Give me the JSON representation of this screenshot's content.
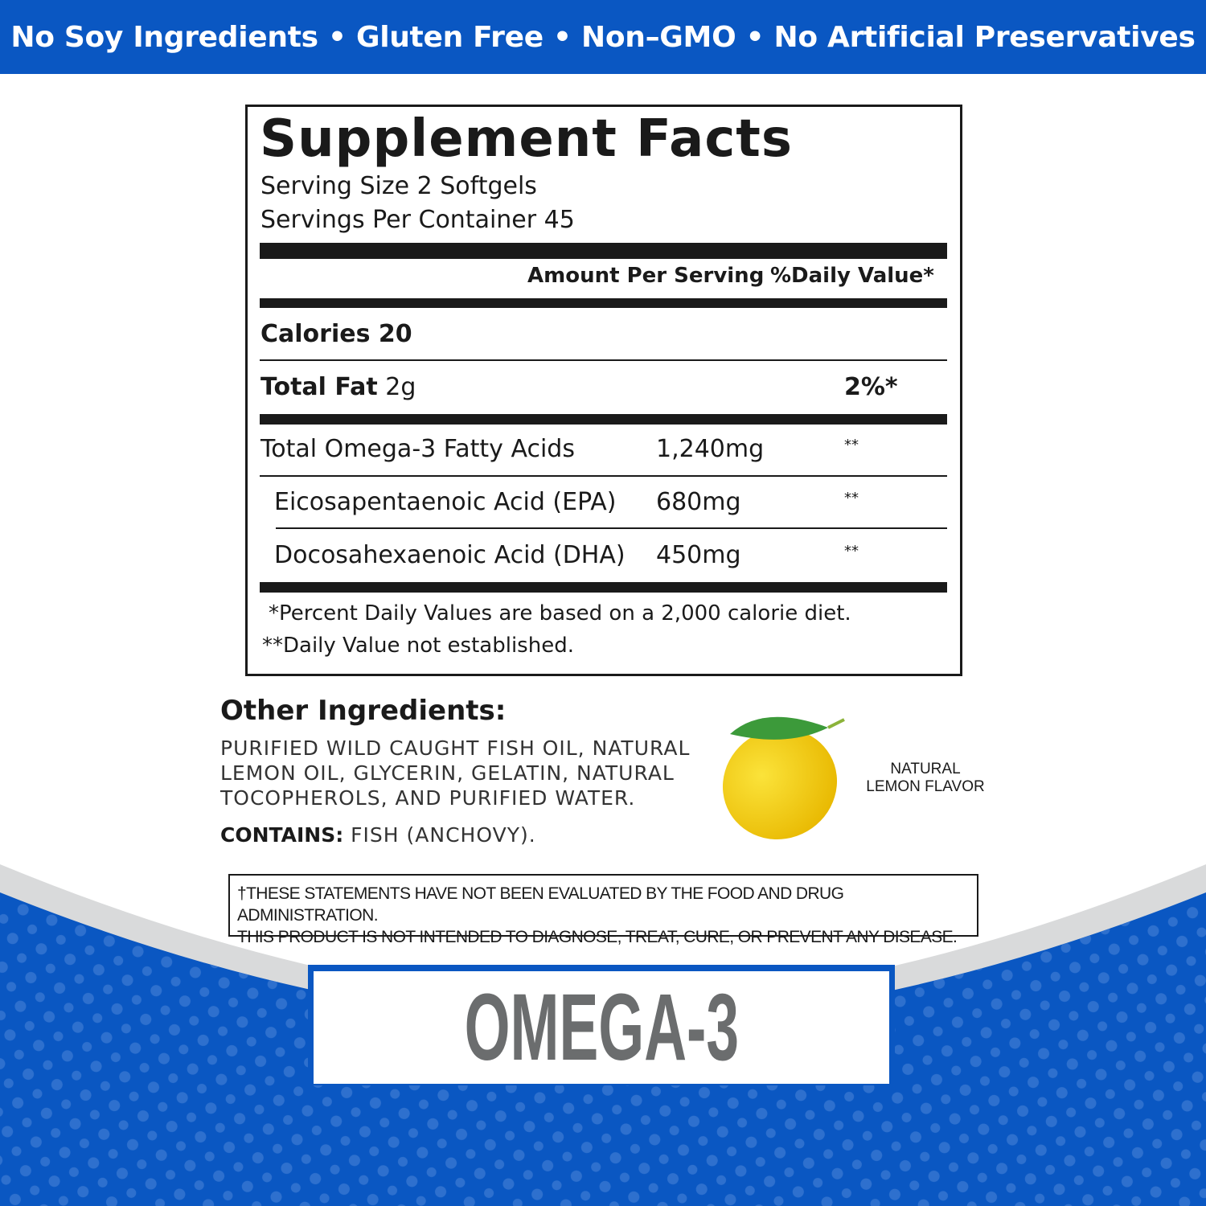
{
  "banner": {
    "text": "No Soy Ingredients • Gluten Free • Non–GMO • No Artificial Preservatives"
  },
  "facts": {
    "title": "Supplement Facts",
    "serving_size": "Serving Size 2 Softgels",
    "servings_per_container": "Servings Per Container 45",
    "col_amount": "Amount Per Serving",
    "col_dv": "%Daily Value*",
    "calories_label": "Calories 20",
    "total_fat_label": "Total Fat",
    "total_fat_amount": "2g",
    "total_fat_dv": "2%*",
    "rows": [
      {
        "name": "Total Omega-3 Fatty Acids",
        "amount": "1,240mg",
        "dv": "**"
      },
      {
        "name": "Eicosapentaenoic Acid (EPA)",
        "amount": "680mg",
        "dv": "**"
      },
      {
        "name": "Docosahexaenoic Acid (DHA)",
        "amount": "450mg",
        "dv": "**"
      }
    ],
    "footnote1": "*Percent Daily Values are based on a 2,000 calorie diet.",
    "footnote2": "**Daily Value not established."
  },
  "ingredients": {
    "heading": "Other Ingredients:",
    "lines": [
      "PURIFIED WILD CAUGHT FISH OIL, NATURAL",
      "LEMON OIL, GLYCERIN, GELATIN, NATURAL",
      "TOCOPHEROLS, AND PURIFIED WATER."
    ],
    "contains_label": "CONTAINS:",
    "contains_value": "FISH (ANCHOVY)."
  },
  "flavor": {
    "line1": "NATURAL",
    "line2": "LEMON FLAVOR",
    "icon": "lemon-icon"
  },
  "disclaimer": {
    "line1": "†THESE STATEMENTS HAVE NOT BEEN EVALUATED BY THE FOOD AND DRUG ADMINISTRATION.",
    "line2": "THIS PRODUCT IS NOT INTENDED TO DIAGNOSE, TREAT, CURE, OR PREVENT ANY DISEASE."
  },
  "product": {
    "name": "OMEGA-3"
  },
  "colors": {
    "brand_blue": "#0a57c2",
    "text_grey": "#6b6d6e",
    "lemon": "#f6d20e",
    "leaf": "#3c9a3a"
  }
}
